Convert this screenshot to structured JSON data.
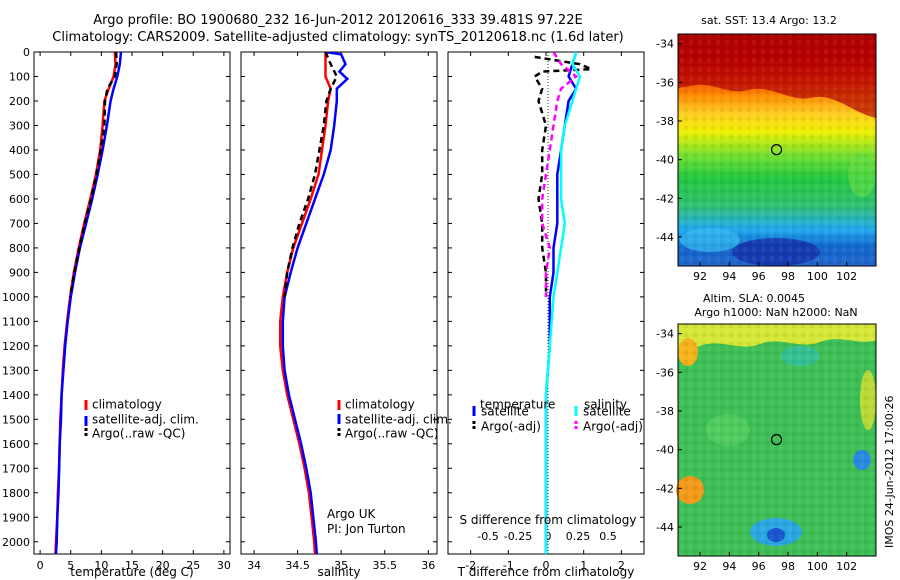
{
  "header": {
    "title_line1": "Argo profile: BO 1900680_232 16-Jun-2012 20120616_333 39.481S 97.22E",
    "title_line2": "Climatology: CARS2009. Satellite-adjusted climatology: synTS_20120618.nc (1.6d later)"
  },
  "colors": {
    "climatology": "#ff0000",
    "satellite": "#0000ff",
    "argo": "#000000",
    "salinity_satellite": "#00ffff",
    "salinity_argo": "#ff00ff"
  },
  "chart_data": [
    {
      "type": "line",
      "panel": "temperature",
      "xlabel": "temperature (deg C)",
      "xlim": [
        -1,
        31
      ],
      "ylim": [
        2050,
        0
      ],
      "xticks": [
        "0",
        "5",
        "10",
        "15",
        "20",
        "25",
        "30"
      ],
      "yticks": [
        "0",
        "100",
        "200",
        "300",
        "400",
        "500",
        "600",
        "700",
        "800",
        "900",
        "1000",
        "1100",
        "1200",
        "1300",
        "1400",
        "1500",
        "1600",
        "1700",
        "1800",
        "1900",
        "2000"
      ],
      "legend": [
        "climatology",
        "satellite-adj. clim.",
        "Argo(..raw -QC)"
      ],
      "legend_position": "lower-right",
      "series": [
        {
          "name": "climatology",
          "color": "#ff0000",
          "points": [
            [
              12.2,
              0
            ],
            [
              12.3,
              50
            ],
            [
              12.0,
              100
            ],
            [
              11.2,
              150
            ],
            [
              10.5,
              200
            ],
            [
              10.2,
              300
            ],
            [
              9.8,
              400
            ],
            [
              9.1,
              500
            ],
            [
              8.2,
              600
            ],
            [
              7.2,
              700
            ],
            [
              6.3,
              800
            ],
            [
              5.5,
              900
            ],
            [
              4.9,
              1000
            ],
            [
              4.4,
              1100
            ],
            [
              4.0,
              1200
            ],
            [
              3.7,
              1300
            ],
            [
              3.5,
              1400
            ],
            [
              3.3,
              1500
            ],
            [
              3.2,
              1600
            ],
            [
              3.1,
              1700
            ],
            [
              2.9,
              1800
            ],
            [
              2.8,
              1900
            ],
            [
              2.6,
              2000
            ],
            [
              2.5,
              2050
            ]
          ]
        },
        {
          "name": "satellite-adj. clim.",
          "color": "#0000ff",
          "points": [
            [
              13.2,
              0
            ],
            [
              13.0,
              50
            ],
            [
              12.6,
              100
            ],
            [
              12.0,
              150
            ],
            [
              11.5,
              200
            ],
            [
              10.9,
              300
            ],
            [
              10.2,
              400
            ],
            [
              9.4,
              500
            ],
            [
              8.5,
              600
            ],
            [
              7.5,
              700
            ],
            [
              6.5,
              800
            ],
            [
              5.7,
              900
            ],
            [
              5.0,
              1000
            ],
            [
              4.5,
              1100
            ],
            [
              4.1,
              1200
            ],
            [
              3.8,
              1300
            ],
            [
              3.5,
              1400
            ],
            [
              3.4,
              1500
            ],
            [
              3.2,
              1600
            ],
            [
              3.1,
              1700
            ],
            [
              3.0,
              1800
            ],
            [
              2.8,
              1900
            ],
            [
              2.7,
              2000
            ],
            [
              2.6,
              2050
            ]
          ]
        },
        {
          "name": "Argo(..raw -QC)",
          "color": "#000000",
          "dashed": true,
          "points": [
            [
              12.4,
              0
            ],
            [
              12.5,
              50
            ],
            [
              12.2,
              100
            ],
            [
              11.0,
              150
            ],
            [
              10.6,
              200
            ],
            [
              10.5,
              300
            ],
            [
              9.9,
              400
            ],
            [
              9.2,
              500
            ],
            [
              8.3,
              600
            ],
            [
              7.3,
              700
            ],
            [
              6.4,
              800
            ],
            [
              5.6,
              900
            ],
            [
              4.9,
              1000
            ]
          ]
        }
      ]
    },
    {
      "type": "line",
      "panel": "salinity",
      "xlabel": "salinity",
      "xlim": [
        33.85,
        36.1
      ],
      "ylim": [
        2050,
        0
      ],
      "xticks": [
        "34",
        "34.5",
        "35",
        "35.5",
        "36"
      ],
      "legend": [
        "climatology",
        "satellite-adj. clim.",
        "Argo(..raw -QC)"
      ],
      "legend_position": "lower-right",
      "annotations": [
        "Argo UK",
        "PI: Jon Turton"
      ],
      "series": [
        {
          "name": "climatology",
          "color": "#ff0000",
          "points": [
            [
              34.82,
              0
            ],
            [
              34.82,
              100
            ],
            [
              34.88,
              150
            ],
            [
              34.85,
              200
            ],
            [
              34.82,
              300
            ],
            [
              34.78,
              400
            ],
            [
              34.74,
              500
            ],
            [
              34.65,
              600
            ],
            [
              34.55,
              700
            ],
            [
              34.45,
              800
            ],
            [
              34.38,
              900
            ],
            [
              34.33,
              1000
            ],
            [
              34.3,
              1100
            ],
            [
              34.3,
              1200
            ],
            [
              34.33,
              1300
            ],
            [
              34.38,
              1400
            ],
            [
              34.45,
              1500
            ],
            [
              34.52,
              1600
            ],
            [
              34.58,
              1700
            ],
            [
              34.63,
              1800
            ],
            [
              34.66,
              1900
            ],
            [
              34.69,
              2000
            ],
            [
              34.7,
              2050
            ]
          ]
        },
        {
          "name": "satellite-adj. clim.",
          "color": "#0000ff",
          "points": [
            [
              34.82,
              0
            ],
            [
              35.0,
              10
            ],
            [
              35.05,
              50
            ],
            [
              34.98,
              80
            ],
            [
              35.07,
              110
            ],
            [
              34.95,
              150
            ],
            [
              34.95,
              200
            ],
            [
              34.92,
              300
            ],
            [
              34.88,
              400
            ],
            [
              34.8,
              500
            ],
            [
              34.7,
              600
            ],
            [
              34.6,
              700
            ],
            [
              34.5,
              800
            ],
            [
              34.42,
              900
            ],
            [
              34.35,
              1000
            ],
            [
              34.33,
              1100
            ],
            [
              34.33,
              1200
            ],
            [
              34.35,
              1300
            ],
            [
              34.4,
              1400
            ],
            [
              34.47,
              1500
            ],
            [
              34.54,
              1600
            ],
            [
              34.6,
              1700
            ],
            [
              34.65,
              1800
            ],
            [
              34.68,
              1900
            ],
            [
              34.71,
              2000
            ],
            [
              34.72,
              2050
            ]
          ]
        },
        {
          "name": "Argo(..raw -QC)",
          "color": "#000000",
          "dashed": true,
          "points": [
            [
              34.82,
              0
            ],
            [
              34.88,
              50
            ],
            [
              34.95,
              100
            ],
            [
              34.88,
              150
            ],
            [
              34.83,
              200
            ],
            [
              34.8,
              300
            ],
            [
              34.75,
              400
            ],
            [
              34.7,
              500
            ],
            [
              34.62,
              600
            ],
            [
              34.52,
              700
            ],
            [
              34.44,
              800
            ],
            [
              34.38,
              900
            ],
            [
              34.35,
              1000
            ]
          ]
        }
      ]
    },
    {
      "type": "line",
      "panel": "difference",
      "xlabel": "T difference from climatology",
      "xlabel_top": "S difference from climatology",
      "xlim": [
        -2.6,
        2.6
      ],
      "ylim": [
        2050,
        0
      ],
      "xticks": [
        "-2",
        "-1",
        "0",
        "1",
        "2"
      ],
      "xticks_top": [
        "-0.5",
        "-0.25",
        "0",
        "0.25",
        "0.5"
      ],
      "legend_headers": [
        "temperature",
        "salinity"
      ],
      "legend": [
        "satellite",
        "Argo(-adj)",
        "satellite",
        "Argo(-adj)"
      ],
      "legend_position": "lower-center",
      "series": [
        {
          "name": "satellite",
          "group": "temperature",
          "color": "#0000ff",
          "points": [
            [
              0.8,
              0
            ],
            [
              0.7,
              50
            ],
            [
              0.6,
              100
            ],
            [
              0.8,
              150
            ],
            [
              0.6,
              200
            ],
            [
              0.5,
              300
            ],
            [
              0.4,
              400
            ],
            [
              0.3,
              500
            ],
            [
              0.3,
              600
            ],
            [
              0.3,
              700
            ],
            [
              0.2,
              800
            ],
            [
              0.2,
              900
            ],
            [
              0.1,
              1000
            ],
            [
              0.1,
              1200
            ],
            [
              0.0,
              1400
            ],
            [
              0.0,
              1600
            ],
            [
              0.0,
              1800
            ],
            [
              0.0,
              2000
            ],
            [
              0.0,
              2050
            ]
          ]
        },
        {
          "name": "Argo(-adj)",
          "group": "temperature",
          "color": "#000000",
          "dashed": true,
          "points": [
            [
              -0.3,
              20
            ],
            [
              0.9,
              50
            ],
            [
              1.2,
              70
            ],
            [
              -0.1,
              80
            ],
            [
              -0.3,
              100
            ],
            [
              -0.1,
              150
            ],
            [
              -0.2,
              200
            ],
            [
              0.0,
              300
            ],
            [
              -0.1,
              400
            ],
            [
              -0.1,
              500
            ],
            [
              -0.2,
              600
            ],
            [
              -0.1,
              700
            ],
            [
              -0.1,
              800
            ],
            [
              0.0,
              900
            ],
            [
              0.0,
              1000
            ]
          ]
        },
        {
          "name": "satellite",
          "group": "salinity",
          "color": "#00ffff",
          "points": [
            [
              0.8,
              0
            ],
            [
              0.7,
              50
            ],
            [
              0.9,
              100
            ],
            [
              0.8,
              150
            ],
            [
              0.7,
              200
            ],
            [
              0.5,
              300
            ],
            [
              0.4,
              400
            ],
            [
              0.4,
              500
            ],
            [
              0.4,
              600
            ],
            [
              0.5,
              700
            ],
            [
              0.4,
              800
            ],
            [
              0.3,
              900
            ],
            [
              0.2,
              1000
            ],
            [
              0.1,
              1200
            ],
            [
              0.0,
              1400
            ],
            [
              0.0,
              1600
            ],
            [
              0.0,
              1800
            ],
            [
              0.0,
              2000
            ],
            [
              0.0,
              2050
            ]
          ]
        },
        {
          "name": "Argo(-adj)",
          "group": "salinity",
          "color": "#ff00ff",
          "dashed": true,
          "points": [
            [
              0.2,
              0
            ],
            [
              0.4,
              50
            ],
            [
              0.8,
              100
            ],
            [
              0.4,
              150
            ],
            [
              0.3,
              200
            ],
            [
              0.2,
              300
            ],
            [
              0.1,
              400
            ],
            [
              0.0,
              500
            ],
            [
              -0.1,
              600
            ],
            [
              -0.1,
              700
            ],
            [
              0.1,
              800
            ],
            [
              0.0,
              900
            ],
            [
              0.0,
              1000
            ]
          ]
        }
      ]
    },
    {
      "type": "heatmap",
      "panel": "sst-map",
      "title": "sat. SST: 13.4  Argo: 13.2",
      "xlim": [
        90.5,
        104
      ],
      "ylim": [
        -45.5,
        -33.5
      ],
      "xticks": [
        "92",
        "94",
        "96",
        "98",
        "100",
        "102"
      ],
      "yticks": [
        "-34",
        "-36",
        "-38",
        "-40",
        "-42",
        "-44"
      ],
      "marker": {
        "lon": 97.22,
        "lat": -39.48
      }
    },
    {
      "type": "heatmap",
      "panel": "sla-map",
      "title": "Altim. SLA: 0.0045",
      "subtitle": "Argo h1000: NaN h2000: NaN",
      "xlim": [
        90.5,
        104
      ],
      "ylim": [
        -45.5,
        -33.5
      ],
      "xticks": [
        "92",
        "94",
        "96",
        "98",
        "100",
        "102"
      ],
      "yticks": [
        "-34",
        "-36",
        "-38",
        "-40",
        "-42",
        "-44"
      ],
      "marker": {
        "lon": 97.22,
        "lat": -39.48
      }
    }
  ],
  "watermark": "IMOS 24-Jun-2012 17:00:26"
}
